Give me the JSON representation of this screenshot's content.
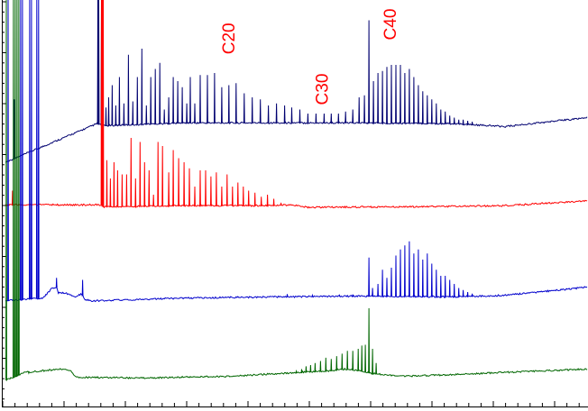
{
  "chart_data": {
    "type": "line",
    "title": "",
    "xlabel": "",
    "ylabel": "",
    "xlim": [
      0,
      652
    ],
    "ylim": [
      0,
      1000
    ],
    "grid": false,
    "legend": "none",
    "annotations": [
      {
        "text": "C20",
        "x": 258,
        "y": 905,
        "color": "#ff0000"
      },
      {
        "text": "C30",
        "x": 362,
        "y": 780,
        "color": "#ff0000"
      },
      {
        "text": "C40",
        "x": 438,
        "y": 940,
        "color": "#ff0000"
      }
    ],
    "series": [
      {
        "color": "#000070",
        "baseline": [
          [
            3,
            600
          ],
          [
            105,
            695
          ],
          [
            112,
            690
          ],
          [
            200,
            697
          ],
          [
            300,
            697
          ],
          [
            400,
            697
          ],
          [
            500,
            695
          ],
          [
            560,
            688
          ],
          [
            651,
            710
          ]
        ],
        "peaks": [
          [
            13,
            755
          ],
          [
            106,
            1000
          ],
          [
            107,
            1000
          ],
          [
            110,
            1000
          ],
          [
            115,
            735
          ],
          [
            118,
            760
          ],
          [
            122,
            790
          ],
          [
            126,
            740
          ],
          [
            130,
            810
          ],
          [
            135,
            745
          ],
          [
            140,
            865
          ],
          [
            145,
            750
          ],
          [
            150,
            810
          ],
          [
            155,
            880
          ],
          [
            160,
            740
          ],
          [
            165,
            810
          ],
          [
            170,
            830
          ],
          [
            175,
            845
          ],
          [
            180,
            730
          ],
          [
            185,
            760
          ],
          [
            190,
            810
          ],
          [
            195,
            800
          ],
          [
            200,
            785
          ],
          [
            205,
            745
          ],
          [
            209,
            810
          ],
          [
            214,
            745
          ],
          [
            220,
            815
          ],
          [
            228,
            815
          ],
          [
            236,
            820
          ],
          [
            244,
            785
          ],
          [
            252,
            790
          ],
          [
            260,
            795
          ],
          [
            269,
            770
          ],
          [
            278,
            760
          ],
          [
            287,
            755
          ],
          [
            296,
            740
          ],
          [
            305,
            745
          ],
          [
            314,
            740
          ],
          [
            322,
            735
          ],
          [
            331,
            730
          ],
          [
            340,
            720
          ],
          [
            349,
            720
          ],
          [
            358,
            720
          ],
          [
            366,
            720
          ],
          [
            374,
            720
          ],
          [
            382,
            725
          ],
          [
            390,
            730
          ],
          [
            397,
            760
          ],
          [
            403,
            765
          ],
          [
            408,
            950
          ],
          [
            413,
            800
          ],
          [
            418,
            820
          ],
          [
            423,
            825
          ],
          [
            428,
            835
          ],
          [
            433,
            840
          ],
          [
            438,
            840
          ],
          [
            443,
            840
          ],
          [
            448,
            820
          ],
          [
            453,
            830
          ],
          [
            458,
            810
          ],
          [
            463,
            790
          ],
          [
            468,
            775
          ],
          [
            473,
            765
          ],
          [
            478,
            755
          ],
          [
            483,
            745
          ],
          [
            488,
            730
          ],
          [
            493,
            725
          ],
          [
            498,
            715
          ],
          [
            503,
            710
          ],
          [
            508,
            705
          ],
          [
            513,
            705
          ],
          [
            518,
            702
          ],
          [
            523,
            700
          ]
        ]
      },
      {
        "color": "#ff0000",
        "baseline": [
          [
            3,
            495
          ],
          [
            110,
            495
          ],
          [
            112,
            490
          ],
          [
            200,
            493
          ],
          [
            300,
            493
          ],
          [
            320,
            495
          ],
          [
            340,
            489
          ],
          [
            450,
            490
          ],
          [
            560,
            493
          ],
          [
            651,
            505
          ]
        ],
        "peaks": [
          [
            11,
            530
          ],
          [
            110,
            1000
          ],
          [
            111,
            1000
          ],
          [
            112,
            1000
          ],
          [
            116,
            605
          ],
          [
            120,
            560
          ],
          [
            124,
            600
          ],
          [
            128,
            580
          ],
          [
            133,
            570
          ],
          [
            138,
            570
          ],
          [
            143,
            660
          ],
          [
            148,
            560
          ],
          [
            153,
            650
          ],
          [
            158,
            600
          ],
          [
            163,
            580
          ],
          [
            168,
            520
          ],
          [
            173,
            650
          ],
          [
            178,
            640
          ],
          [
            185,
            575
          ],
          [
            190,
            630
          ],
          [
            196,
            610
          ],
          [
            202,
            600
          ],
          [
            208,
            585
          ],
          [
            214,
            540
          ],
          [
            220,
            580
          ],
          [
            226,
            580
          ],
          [
            232,
            565
          ],
          [
            238,
            575
          ],
          [
            244,
            540
          ],
          [
            250,
            570
          ],
          [
            256,
            540
          ],
          [
            262,
            550
          ],
          [
            268,
            540
          ],
          [
            274,
            530
          ],
          [
            281,
            525
          ],
          [
            288,
            515
          ],
          [
            295,
            520
          ],
          [
            302,
            510
          ],
          [
            310,
            500
          ]
        ]
      },
      {
        "color": "#0000cc",
        "baseline": [
          [
            3,
            258
          ],
          [
            30,
            263
          ],
          [
            45,
            265
          ],
          [
            55,
            290
          ],
          [
            60,
            290
          ],
          [
            62,
            278
          ],
          [
            70,
            278
          ],
          [
            80,
            268
          ],
          [
            88,
            275
          ],
          [
            92,
            260
          ],
          [
            97,
            260
          ],
          [
            100,
            258
          ],
          [
            200,
            265
          ],
          [
            300,
            268
          ],
          [
            400,
            270
          ],
          [
            500,
            268
          ],
          [
            560,
            272
          ],
          [
            651,
            292
          ]
        ],
        "peaks": [
          [
            6,
            1000
          ],
          [
            20,
            1000
          ],
          [
            22,
            1000
          ],
          [
            30,
            1000
          ],
          [
            32,
            1000
          ],
          [
            38,
            1000
          ],
          [
            40,
            1000
          ],
          [
            60,
            315
          ],
          [
            89,
            310
          ],
          [
            317,
            275
          ],
          [
            345,
            272
          ],
          [
            375,
            272
          ],
          [
            390,
            274
          ],
          [
            408,
            365
          ],
          [
            412,
            290
          ],
          [
            418,
            300
          ],
          [
            423,
            335
          ],
          [
            428,
            315
          ],
          [
            433,
            340
          ],
          [
            438,
            370
          ],
          [
            443,
            385
          ],
          [
            448,
            395
          ],
          [
            453,
            405
          ],
          [
            458,
            375
          ],
          [
            463,
            385
          ],
          [
            468,
            360
          ],
          [
            473,
            375
          ],
          [
            478,
            350
          ],
          [
            483,
            335
          ],
          [
            488,
            320
          ],
          [
            493,
            320
          ],
          [
            498,
            310
          ],
          [
            503,
            300
          ],
          [
            508,
            290
          ],
          [
            513,
            285
          ],
          [
            518,
            280
          ],
          [
            523,
            276
          ]
        ]
      },
      {
        "color": "#006600",
        "baseline": [
          [
            3,
            62
          ],
          [
            12,
            70
          ],
          [
            25,
            82
          ],
          [
            40,
            85
          ],
          [
            65,
            90
          ],
          [
            75,
            88
          ],
          [
            82,
            70
          ],
          [
            150,
            68
          ],
          [
            250,
            72
          ],
          [
            300,
            78
          ],
          [
            330,
            82
          ],
          [
            360,
            85
          ],
          [
            380,
            90
          ],
          [
            395,
            87
          ],
          [
            410,
            80
          ],
          [
            440,
            72
          ],
          [
            500,
            76
          ],
          [
            560,
            82
          ],
          [
            651,
            90
          ]
        ],
        "peaks": [
          [
            4,
            1000
          ],
          [
            12,
            1000
          ],
          [
            14,
            1000
          ],
          [
            16,
            1000
          ],
          [
            18,
            1000
          ],
          [
            29,
            80
          ],
          [
            327,
            85
          ],
          [
            333,
            90
          ],
          [
            338,
            97
          ],
          [
            343,
            100
          ],
          [
            348,
            105
          ],
          [
            354,
            110
          ],
          [
            360,
            118
          ],
          [
            366,
            115
          ],
          [
            372,
            122
          ],
          [
            378,
            128
          ],
          [
            384,
            135
          ],
          [
            390,
            135
          ],
          [
            396,
            140
          ],
          [
            400,
            148
          ],
          [
            404,
            150
          ],
          [
            408,
            240
          ],
          [
            412,
            140
          ],
          [
            416,
            105
          ]
        ]
      }
    ]
  }
}
